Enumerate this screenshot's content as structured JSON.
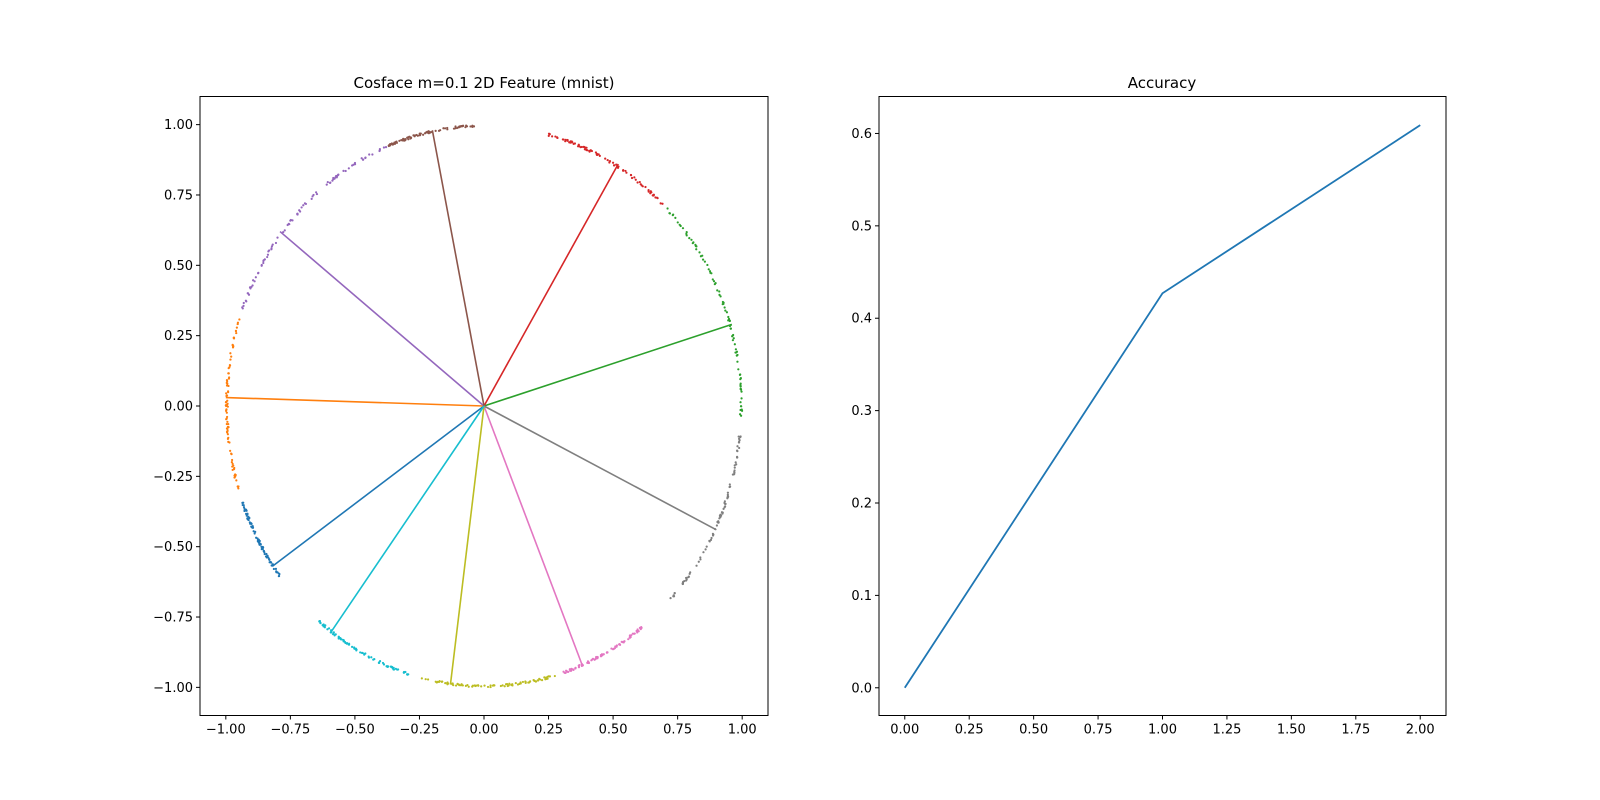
{
  "chart_data": [
    {
      "type": "scatter",
      "title": "Cosface m=0.1 2D Feature (mnist)",
      "xlabel": "",
      "ylabel": "",
      "xlim": [
        -1.1,
        1.1
      ],
      "ylim": [
        -1.1,
        1.1
      ],
      "xticks": [
        -1.0,
        -0.75,
        -0.5,
        -0.25,
        0.0,
        0.25,
        0.5,
        0.75,
        1.0
      ],
      "xtick_labels": [
        "−1.00",
        "−0.75",
        "−0.50",
        "−0.25",
        "0.00",
        "0.25",
        "0.50",
        "0.75",
        "1.00"
      ],
      "yticks": [
        -1.0,
        -0.75,
        -0.5,
        -0.25,
        0.0,
        0.25,
        0.5,
        0.75,
        1.0
      ],
      "ytick_labels": [
        "−1.00",
        "−0.75",
        "−0.50",
        "−0.25",
        "0.00",
        "0.25",
        "0.50",
        "0.75",
        "1.00"
      ],
      "grid": false,
      "series": [
        {
          "class": 0,
          "color": "#1f77b4",
          "center": [
            -0.82,
            -0.57
          ],
          "arc_deg": [
            -160,
            -142
          ]
        },
        {
          "class": 1,
          "color": "#ff7f0e",
          "center": [
            -1.0,
            0.03
          ],
          "arc_deg": [
            162,
            198
          ]
        },
        {
          "class": 2,
          "color": "#2ca02c",
          "center": [
            0.96,
            0.29
          ],
          "arc_deg": [
            -2,
            45
          ]
        },
        {
          "class": 3,
          "color": "#d62728",
          "center": [
            0.52,
            0.86
          ],
          "arc_deg": [
            45,
            76
          ]
        },
        {
          "class": 4,
          "color": "#9467bd",
          "center": [
            -0.79,
            0.62
          ],
          "arc_deg": [
            112,
            160
          ]
        },
        {
          "class": 5,
          "color": "#8c564b",
          "center": [
            -0.2,
            0.98
          ],
          "arc_deg": [
            92,
            112
          ]
        },
        {
          "class": 6,
          "color": "#e377c2",
          "center": [
            0.38,
            -0.92
          ],
          "arc_deg": [
            -72,
            -52
          ]
        },
        {
          "class": 7,
          "color": "#7f7f7f",
          "center": [
            0.9,
            -0.44
          ],
          "arc_deg": [
            -45,
            -6
          ]
        },
        {
          "class": 8,
          "color": "#bcbd22",
          "center": [
            -0.13,
            -0.99
          ],
          "arc_deg": [
            -104,
            -74
          ]
        },
        {
          "class": 9,
          "color": "#17becf",
          "center": [
            -0.59,
            -0.8
          ],
          "arc_deg": [
            -130,
            -107
          ]
        }
      ]
    },
    {
      "type": "line",
      "title": "Accuracy",
      "xlabel": "",
      "ylabel": "",
      "xlim": [
        -0.1,
        2.1
      ],
      "ylim": [
        -0.03,
        0.64
      ],
      "xticks": [
        0.0,
        0.25,
        0.5,
        0.75,
        1.0,
        1.25,
        1.5,
        1.75,
        2.0
      ],
      "xtick_labels": [
        "0.00",
        "0.25",
        "0.50",
        "0.75",
        "1.00",
        "1.25",
        "1.50",
        "1.75",
        "2.00"
      ],
      "yticks": [
        0.0,
        0.1,
        0.2,
        0.3,
        0.4,
        0.5,
        0.6
      ],
      "ytick_labels": [
        "0.0",
        "0.1",
        "0.2",
        "0.3",
        "0.4",
        "0.5",
        "0.6"
      ],
      "grid": false,
      "series": [
        {
          "color": "#1f77b4",
          "x": [
            0,
            1,
            2
          ],
          "y": [
            0.0,
            0.427,
            0.609
          ]
        }
      ]
    }
  ]
}
